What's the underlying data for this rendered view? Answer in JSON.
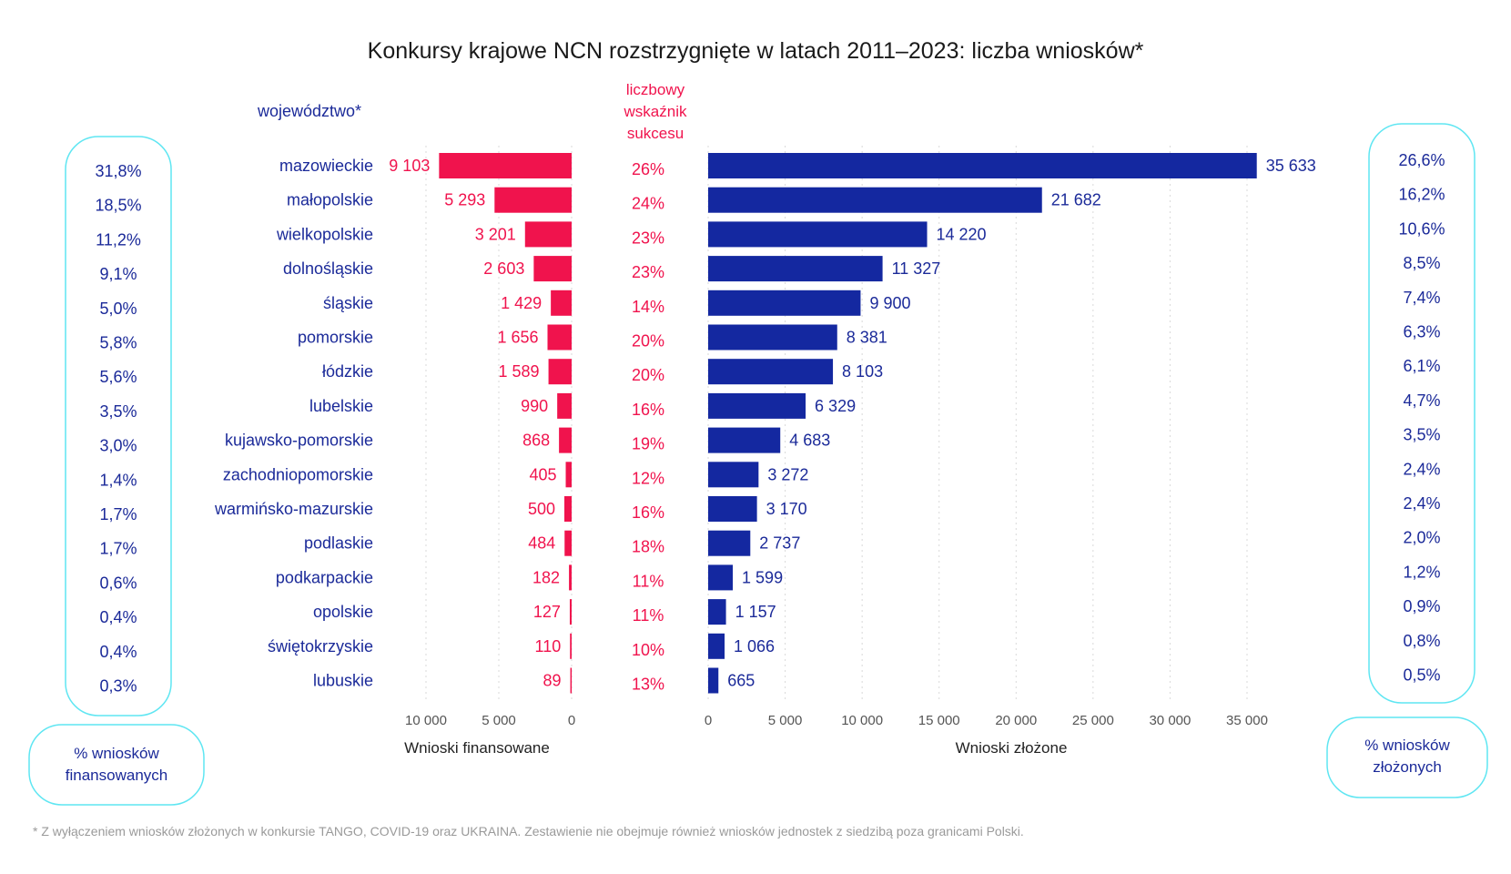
{
  "chart_data": {
    "type": "bar",
    "title": "Konkursy krajowe NCN rozstrzygnięte w latach 2011–2023: liczba wniosków*",
    "category_header": "województwo*",
    "rate_header": [
      "liczbowy",
      "wskaźnik",
      "sukcesu"
    ],
    "categories": [
      "mazowieckie",
      "małopolskie",
      "wielkopolskie",
      "dolnośląskie",
      "śląskie",
      "pomorskie",
      "łódzkie",
      "lubelskie",
      "kujawsko-pomorskie",
      "zachodniopomorskie",
      "warmińsko-mazurskie",
      "podlaskie",
      "podkarpackie",
      "opolskie",
      "świętokrzyskie",
      "lubuskie"
    ],
    "series": [
      {
        "name": "Wnioski finansowane",
        "color": "#f0134d",
        "values": [
          9103,
          5293,
          3201,
          2603,
          1429,
          1656,
          1589,
          990,
          868,
          405,
          500,
          484,
          182,
          127,
          110,
          89
        ],
        "labels": [
          "9 103",
          "5 293",
          "3 201",
          "2 603",
          "1 429",
          "1 656",
          "1 589",
          "990",
          "868",
          "405",
          "500",
          "484",
          "182",
          "127",
          "110",
          "89"
        ],
        "xlim": [
          10000,
          0
        ],
        "ticks": [
          10000,
          5000,
          0
        ],
        "tick_labels": [
          "10 000",
          "5 000",
          "0"
        ]
      },
      {
        "name": "Wnioski złożone",
        "color": "#1428a0",
        "values": [
          35633,
          21682,
          14220,
          11327,
          9900,
          8381,
          8103,
          6329,
          4683,
          3272,
          3170,
          2737,
          1599,
          1157,
          1066,
          665
        ],
        "labels": [
          "35 633",
          "21 682",
          "14 220",
          "11 327",
          "9 900",
          "8 381",
          "8 103",
          "6 329",
          "4 683",
          "3 272",
          "3 170",
          "2 737",
          "1 599",
          "1 157",
          "1 066",
          "665"
        ],
        "xlim": [
          0,
          35000
        ],
        "ticks": [
          0,
          5000,
          10000,
          15000,
          20000,
          25000,
          30000,
          35000
        ],
        "tick_labels": [
          "0",
          "5 000",
          "10 000",
          "15 000",
          "20 000",
          "25 000",
          "30 000",
          "35 000"
        ]
      }
    ],
    "success_rate": [
      "26%",
      "24%",
      "23%",
      "23%",
      "14%",
      "20%",
      "20%",
      "16%",
      "19%",
      "12%",
      "16%",
      "18%",
      "11%",
      "11%",
      "10%",
      "13%"
    ],
    "pct_funded": [
      "31,8%",
      "18,5%",
      "11,2%",
      "9,1%",
      "5,0%",
      "5,8%",
      "5,6%",
      "3,5%",
      "3,0%",
      "1,4%",
      "1,7%",
      "1,7%",
      "0,6%",
      "0,4%",
      "0,4%",
      "0,3%"
    ],
    "pct_submitted": [
      "26,6%",
      "16,2%",
      "10,6%",
      "8,5%",
      "7,4%",
      "6,3%",
      "6,1%",
      "4,7%",
      "3,5%",
      "2,4%",
      "2,4%",
      "2,0%",
      "1,2%",
      "0,9%",
      "0,8%",
      "0,5%"
    ],
    "pct_funded_label": [
      "% wniosków",
      "finansowanych"
    ],
    "pct_submitted_label": [
      "% wniosków",
      "złożonych"
    ],
    "grid": true,
    "footnote": "* Z wyłączeniem wniosków złożonych w konkursie TANGO, COVID-19 oraz UKRAINA. Zestawienie nie obejmuje również wniosków jednostek z siedzibą poza granicami Polski."
  }
}
